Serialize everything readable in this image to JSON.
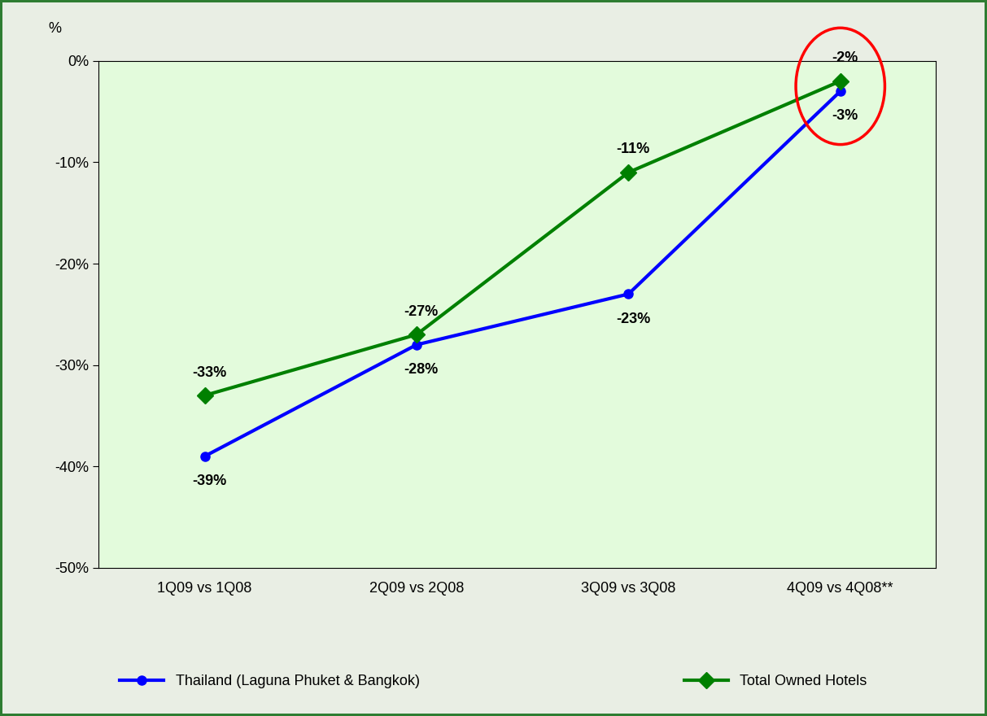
{
  "chart_data": {
    "type": "line",
    "y_label": "%",
    "categories": [
      "1Q09 vs 1Q08",
      "2Q09 vs 2Q08",
      "3Q09 vs 3Q08",
      "4Q09 vs 4Q08**"
    ],
    "series": [
      {
        "name": "Thailand (Laguna Phuket & Bangkok)",
        "color": "#0000ff",
        "marker": "circle",
        "values": [
          -39,
          -28,
          -23,
          -3
        ],
        "value_labels": [
          "-39%",
          "-28%",
          "-23%",
          "-3%"
        ]
      },
      {
        "name": "Total Owned Hotels",
        "color": "#008000",
        "marker": "diamond",
        "values": [
          -33,
          -27,
          -11,
          -2
        ],
        "value_labels": [
          "-33%",
          "-27%",
          "-11%",
          "-2%"
        ]
      }
    ],
    "ylim": [
      -50,
      0
    ],
    "yticks": [
      {
        "value": -50,
        "label": "-50%"
      },
      {
        "value": -40,
        "label": "-40%"
      },
      {
        "value": -30,
        "label": "-30%"
      },
      {
        "value": -20,
        "label": "-20%"
      },
      {
        "value": -10,
        "label": "-10%"
      },
      {
        "value": 0,
        "label": "0%"
      }
    ],
    "grid": false,
    "legend": "lower center",
    "data_labels": true
  }
}
